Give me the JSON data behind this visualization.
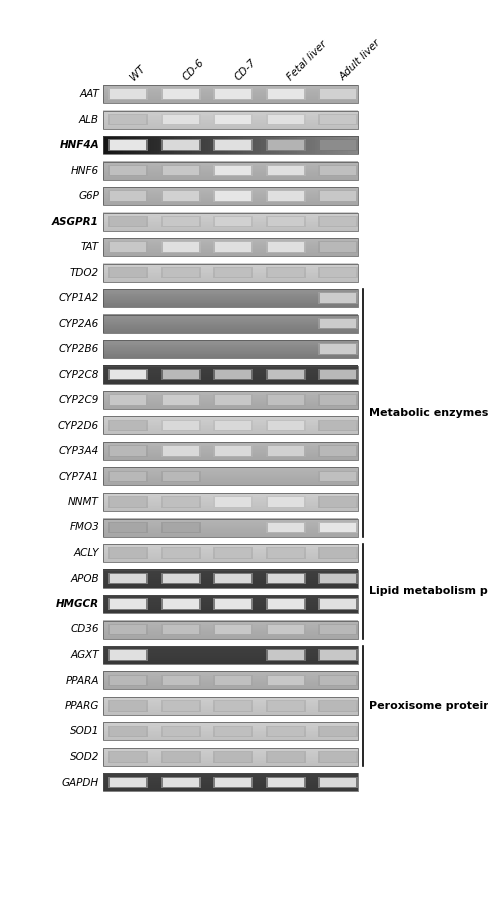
{
  "genes": [
    "AAT",
    "ALB",
    "HNF4A",
    "HNF6",
    "G6P",
    "ASGPR1",
    "TAT",
    "TDO2",
    "CYP1A2",
    "CYP2A6",
    "CYP2B6",
    "CYP2C8",
    "CYP2C9",
    "CYP2D6",
    "CYP3A4",
    "CYP7A1",
    "NNMT",
    "FMO3",
    "ACLY",
    "APOB",
    "HMGCR",
    "CD36",
    "AGXT",
    "PPARA",
    "PPARG",
    "SOD1",
    "SOD2",
    "GAPDH"
  ],
  "bold_genes": [
    "ASGPR1",
    "HNF4A",
    "HMGCR"
  ],
  "columns": [
    "WT",
    "CD-6",
    "CD-7",
    "Fetal liver",
    "Adult liver"
  ],
  "n_cols": 5,
  "bracket_groups": [
    {
      "label": "Metabolic enzymes",
      "start_gene": "CYP1A2",
      "end_gene": "FMO3"
    },
    {
      "label": "Lipid metabolism proteins",
      "start_gene": "ACLY",
      "end_gene": "CD36"
    },
    {
      "label": "Peroxisome proteins",
      "start_gene": "AGXT",
      "end_gene": "SOD2"
    }
  ],
  "band_data": {
    "AAT": {
      "bg": "medgray",
      "bands": [
        0.88,
        0.9,
        0.9,
        0.9,
        0.82
      ]
    },
    "ALB": {
      "bg": "lightgray",
      "bands": [
        0.75,
        0.88,
        0.9,
        0.88,
        0.78
      ]
    },
    "HNF4A": {
      "bg": "darkgrad",
      "bands": [
        0.9,
        0.85,
        0.88,
        0.7,
        0.55
      ]
    },
    "HNF6": {
      "bg": "medgray",
      "bands": [
        0.75,
        0.78,
        0.9,
        0.88,
        0.75
      ]
    },
    "G6P": {
      "bg": "medgray",
      "bands": [
        0.78,
        0.82,
        0.9,
        0.88,
        0.78
      ]
    },
    "ASGPR1": {
      "bg": "lightgray",
      "bands": [
        0.72,
        0.78,
        0.82,
        0.8,
        0.75
      ]
    },
    "TAT": {
      "bg": "medgray",
      "bands": [
        0.78,
        0.88,
        0.88,
        0.88,
        0.72
      ]
    },
    "TDO2": {
      "bg": "lightgray",
      "bands": [
        0.72,
        0.75,
        0.75,
        0.75,
        0.75
      ]
    },
    "CYP1A2": {
      "bg": "darkgray2",
      "bands": [
        0.0,
        0.0,
        0.0,
        0.0,
        0.8
      ]
    },
    "CYP2A6": {
      "bg": "darkgray2",
      "bands": [
        0.0,
        0.0,
        0.0,
        0.0,
        0.8
      ]
    },
    "CYP2B6": {
      "bg": "darkgray2",
      "bands": [
        0.0,
        0.0,
        0.0,
        0.0,
        0.8
      ]
    },
    "CYP2C8": {
      "bg": "darkbg",
      "bands": [
        0.9,
        0.72,
        0.72,
        0.75,
        0.72
      ]
    },
    "CYP2C9": {
      "bg": "medgray",
      "bands": [
        0.78,
        0.8,
        0.78,
        0.75,
        0.72
      ]
    },
    "CYP2D6": {
      "bg": "lightgray",
      "bands": [
        0.72,
        0.85,
        0.85,
        0.85,
        0.72
      ]
    },
    "CYP3A4": {
      "bg": "medgray",
      "bands": [
        0.72,
        0.85,
        0.85,
        0.82,
        0.72
      ]
    },
    "CYP7A1": {
      "bg": "medgray",
      "bands": [
        0.72,
        0.72,
        0.0,
        0.0,
        0.75
      ]
    },
    "NNMT": {
      "bg": "lightgray",
      "bands": [
        0.72,
        0.75,
        0.88,
        0.88,
        0.72
      ]
    },
    "FMO3": {
      "bg": "medgray",
      "bands": [
        0.65,
        0.65,
        0.0,
        0.88,
        0.9
      ]
    },
    "ACLY": {
      "bg": "lightgray",
      "bands": [
        0.72,
        0.75,
        0.75,
        0.75,
        0.72
      ]
    },
    "APOB": {
      "bg": "darkbg",
      "bands": [
        0.85,
        0.85,
        0.85,
        0.85,
        0.78
      ]
    },
    "HMGCR": {
      "bg": "darkbg",
      "bands": [
        0.9,
        0.9,
        0.9,
        0.9,
        0.88
      ]
    },
    "CD36": {
      "bg": "medgray",
      "bands": [
        0.72,
        0.75,
        0.78,
        0.78,
        0.72
      ]
    },
    "AGXT": {
      "bg": "darkbg",
      "bands": [
        0.88,
        0.0,
        0.0,
        0.78,
        0.78
      ]
    },
    "PPARA": {
      "bg": "medgray",
      "bands": [
        0.72,
        0.75,
        0.75,
        0.78,
        0.72
      ]
    },
    "PPARG": {
      "bg": "lightgray",
      "bands": [
        0.72,
        0.75,
        0.75,
        0.75,
        0.72
      ]
    },
    "SOD1": {
      "bg": "lightgray",
      "bands": [
        0.72,
        0.75,
        0.75,
        0.75,
        0.72
      ]
    },
    "SOD2": {
      "bg": "lightgray",
      "bands": [
        0.72,
        0.72,
        0.72,
        0.72,
        0.72
      ]
    },
    "GAPDH": {
      "bg": "darkbg",
      "bands": [
        0.88,
        0.88,
        0.88,
        0.88,
        0.85
      ]
    }
  },
  "bg_colors": {
    "lightgray": 0.78,
    "medgray": 0.68,
    "darkgray2": 0.55,
    "darkbg": 0.22,
    "darkgrad": 0.15
  },
  "fig_width": 4.89,
  "fig_height": 8.97,
  "background_color": "#ffffff"
}
